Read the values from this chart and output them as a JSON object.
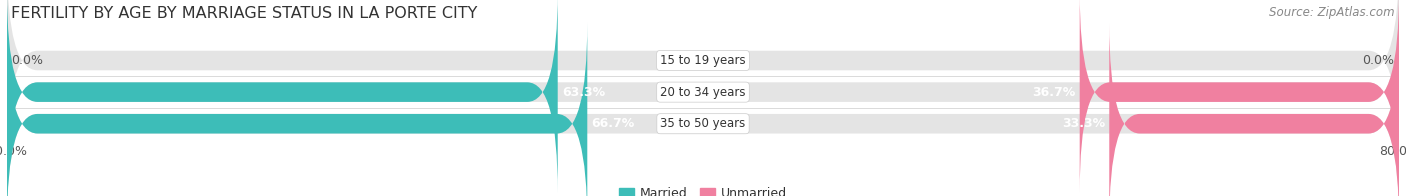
{
  "title": "FERTILITY BY AGE BY MARRIAGE STATUS IN LA PORTE CITY",
  "source": "Source: ZipAtlas.com",
  "categories": [
    "15 to 19 years",
    "20 to 34 years",
    "35 to 50 years"
  ],
  "married_values": [
    0.0,
    63.3,
    66.7
  ],
  "unmarried_values": [
    0.0,
    36.7,
    33.3
  ],
  "married_color": "#3dbdb8",
  "unmarried_color": "#f080a0",
  "bar_bg_color": "#e4e4e4",
  "bar_height": 0.62,
  "xlim_left": -80.0,
  "xlim_right": 80.0,
  "title_fontsize": 11.5,
  "source_fontsize": 8.5,
  "label_fontsize": 9,
  "category_fontsize": 8.5,
  "legend_fontsize": 9,
  "background_color": "#ffffff",
  "bar_bg_rounding": 5.0
}
